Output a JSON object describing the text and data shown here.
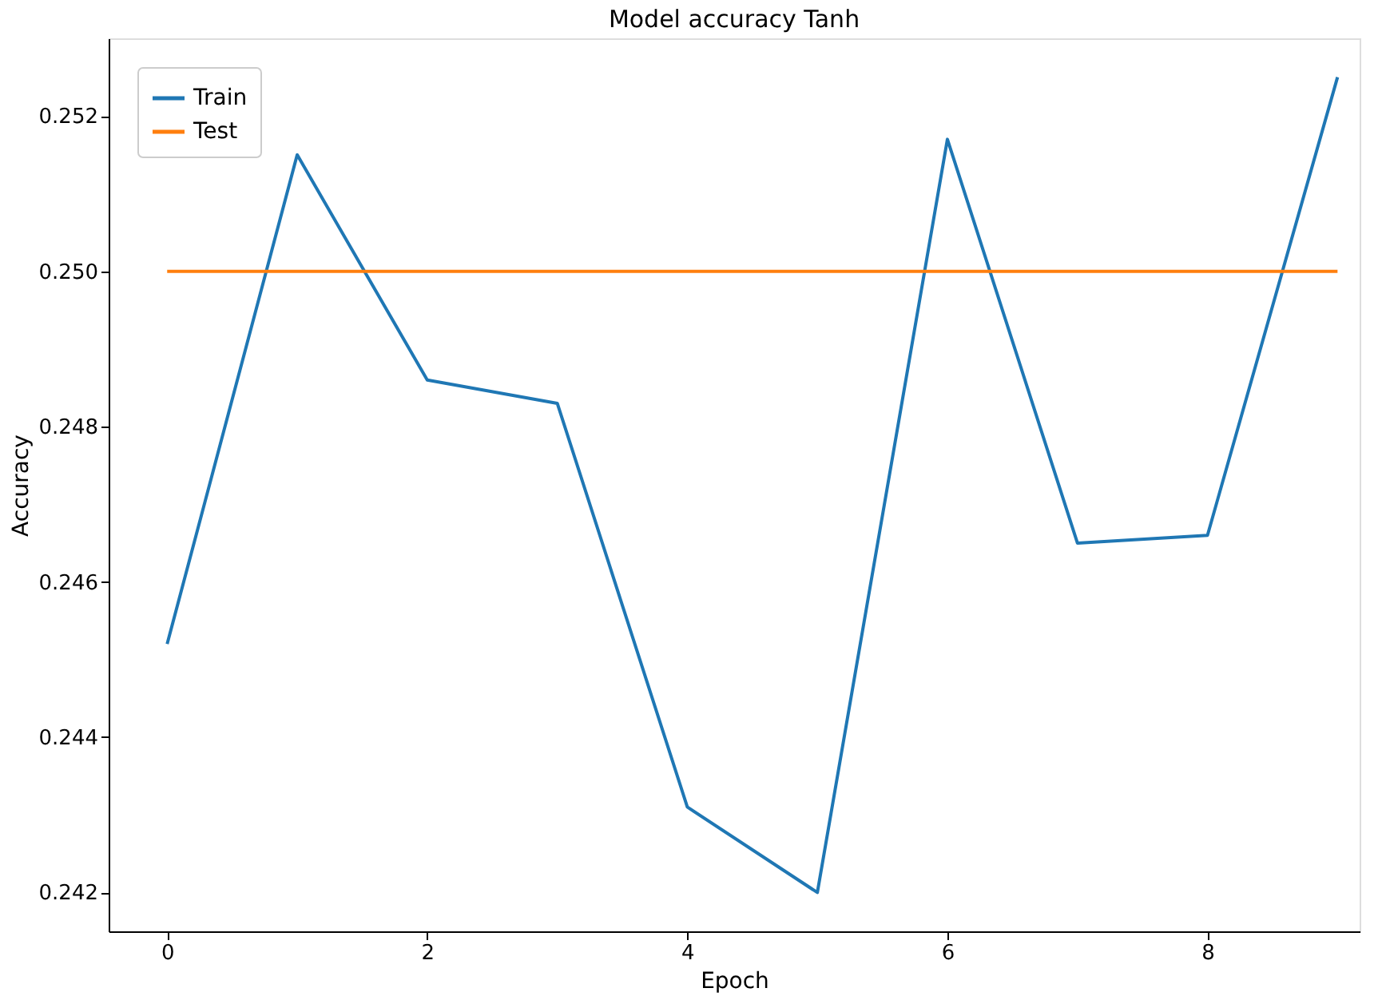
{
  "chart_data": {
    "type": "line",
    "title": "Model accuracy Tanh",
    "xlabel": "Epoch",
    "ylabel": "Accuracy",
    "x": [
      0,
      1,
      2,
      3,
      4,
      5,
      6,
      7,
      8,
      9
    ],
    "series": [
      {
        "name": "Train",
        "color": "#1f77b4",
        "values": [
          0.2452,
          0.2515,
          0.2486,
          0.2483,
          0.2431,
          0.242,
          0.2517,
          0.2465,
          0.2466,
          0.2525
        ]
      },
      {
        "name": "Test",
        "color": "#ff7f0e",
        "values": [
          0.25,
          0.25,
          0.25,
          0.25,
          0.25,
          0.25,
          0.25,
          0.25,
          0.25,
          0.25
        ]
      }
    ],
    "xlim": [
      -0.45,
      9.17
    ],
    "xticks": [
      0,
      2,
      4,
      6,
      8
    ],
    "ylim": [
      0.2415,
      0.253
    ],
    "yticks": [
      0.242,
      0.244,
      0.246,
      0.248,
      {
        "value": 0.25,
        "label": "0.250"
      },
      0.252
    ],
    "grid": false,
    "legend": "top left",
    "marker": "none",
    "line_style": "solid"
  }
}
